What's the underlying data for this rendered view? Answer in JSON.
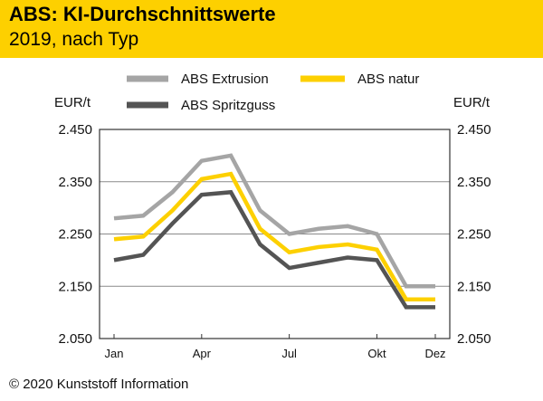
{
  "header": {
    "title": "ABS: KI-Durchschnittswerte",
    "subtitle": "2019, nach Typ"
  },
  "footer": {
    "copyright": "© 2020 Kunststoff Information"
  },
  "colors": {
    "header_bg": "#fdd000",
    "extrusion": "#a5a5a5",
    "natur": "#fdd000",
    "spritzguss": "#545454"
  },
  "chart_data": {
    "type": "line",
    "x": [
      1,
      1.5,
      2,
      2.5,
      3,
      3.5,
      4,
      4.5,
      5,
      5.5,
      6,
      6.5,
      7,
      7.5,
      8,
      8.5,
      9,
      9.5,
      10,
      10.5,
      11,
      11.5,
      12
    ],
    "categories": [
      "Jan",
      "Apr",
      "Jul",
      "Okt",
      "Dez"
    ],
    "category_positions": [
      1,
      4,
      7,
      10,
      12
    ],
    "series": [
      {
        "name": "ABS Extrusion",
        "color": "#a5a5a5",
        "x": [
          1,
          2,
          3,
          4,
          5,
          6,
          7,
          8,
          9,
          10,
          11,
          12
        ],
        "values": [
          2280,
          2285,
          2330,
          2390,
          2400,
          2295,
          2250,
          2260,
          2265,
          2250,
          2150,
          2150
        ]
      },
      {
        "name": "ABS natur",
        "color": "#fdd000",
        "x": [
          1,
          2,
          3,
          4,
          5,
          6,
          7,
          8,
          9,
          10,
          11,
          12
        ],
        "values": [
          2240,
          2245,
          2295,
          2355,
          2365,
          2260,
          2215,
          2225,
          2230,
          2220,
          2125,
          2125
        ]
      },
      {
        "name": "ABS Spritzguss",
        "color": "#545454",
        "x": [
          1,
          2,
          3,
          4,
          5,
          6,
          7,
          8,
          9,
          10,
          11,
          12
        ],
        "values": [
          2200,
          2210,
          2270,
          2325,
          2330,
          2230,
          2185,
          2195,
          2205,
          2200,
          2110,
          2110
        ]
      }
    ],
    "ylabel_left": "EUR/t",
    "ylabel_right": "EUR/t",
    "ylim": [
      2050,
      2450
    ],
    "yticks": [
      2050,
      2150,
      2250,
      2350,
      2450
    ],
    "ytick_labels": [
      "2.050",
      "2.150",
      "2.250",
      "2.350",
      "2.450"
    ],
    "xlim": [
      1,
      12
    ],
    "grid": "horizontal",
    "legend_position": "top"
  }
}
